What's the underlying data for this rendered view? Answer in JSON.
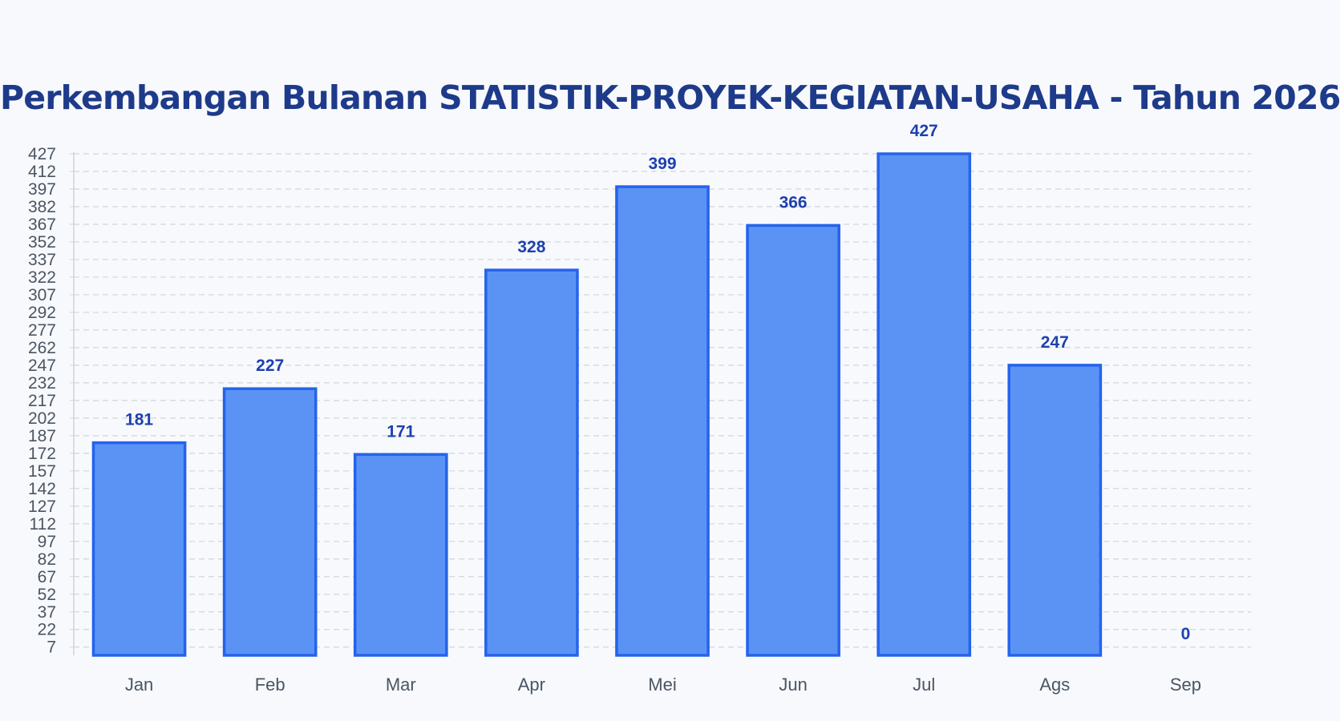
{
  "chart_data": {
    "type": "bar",
    "title": "Perkembangan Bulanan STATISTIK-PROYEK-KEGIATAN-USAHA - Tahun 2026",
    "categories": [
      "Jan",
      "Feb",
      "Mar",
      "Apr",
      "Mei",
      "Jun",
      "Jul",
      "Ags",
      "Sep"
    ],
    "values": [
      181,
      227,
      171,
      328,
      399,
      366,
      427,
      247,
      0
    ],
    "y_ticks": [
      7,
      22,
      37,
      52,
      67,
      82,
      97,
      112,
      127,
      142,
      157,
      172,
      187,
      202,
      217,
      232,
      247,
      262,
      277,
      292,
      307,
      322,
      337,
      352,
      367,
      382,
      397,
      412,
      427
    ],
    "ylim": [
      0,
      427
    ],
    "xlabel": "",
    "ylabel": "",
    "grid": true,
    "data_labels": true,
    "legend": "none"
  },
  "colors": {
    "bar_fill": "#5b93f5",
    "bar_stroke": "#2563eb",
    "value_label": "#1e40af",
    "title": "#1e3a8a",
    "grid": "#d1d5db",
    "axis": "#cbd5e1",
    "tick_text": "#4b5563",
    "background": "#f7f9fc"
  }
}
